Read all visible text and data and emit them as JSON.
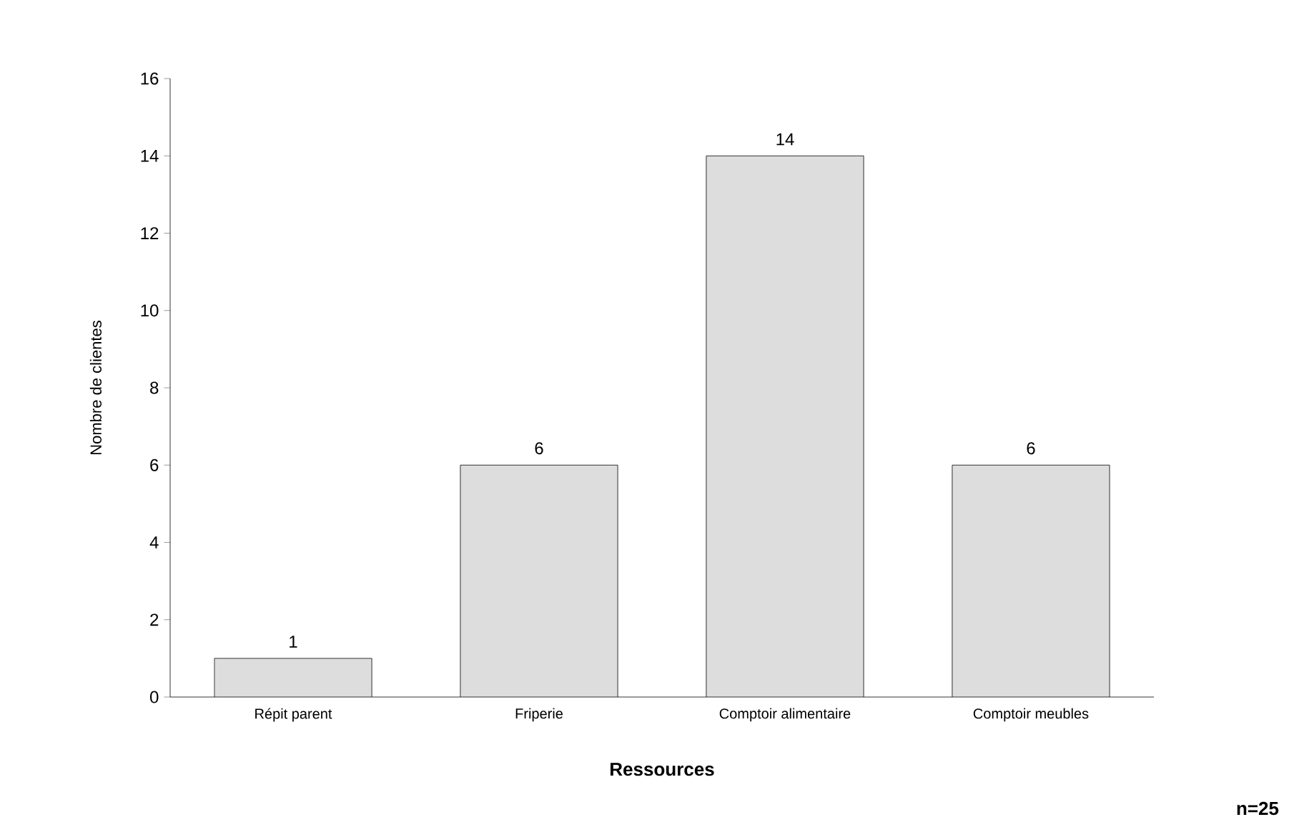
{
  "chart_data": {
    "type": "bar",
    "categories": [
      "Répit parent",
      "Friperie",
      "Comptoir alimentaire",
      "Comptoir meubles"
    ],
    "values": [
      1,
      6,
      14,
      6
    ],
    "color": "#dddddd",
    "xlabel": "Ressources",
    "ylabel": "Nombre de clientes",
    "ylim": [
      0,
      16
    ],
    "yticks": [
      0,
      2,
      4,
      6,
      8,
      10,
      12,
      14,
      16
    ],
    "data_labels": true,
    "grid": false,
    "annotations": [
      "n=25"
    ]
  }
}
